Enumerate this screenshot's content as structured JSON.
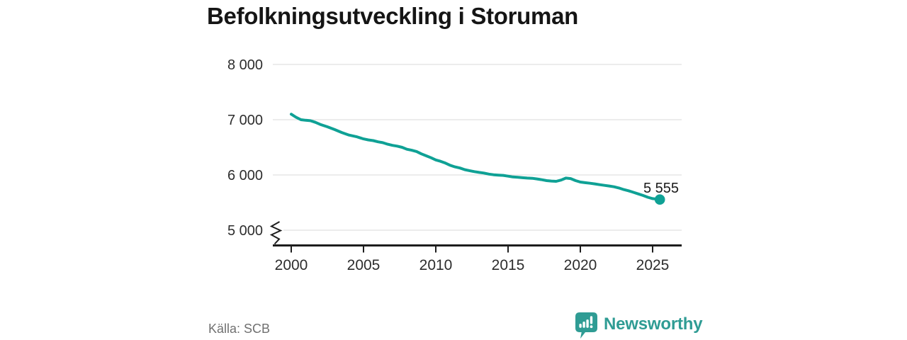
{
  "title": "Befolkningsutveckling i Storuman",
  "source": "Källa: SCB",
  "branding": {
    "name": "Newsworthy",
    "icon": "bar-chart-speech-bubble-icon"
  },
  "colors": {
    "line": "#0fa195",
    "end_point": "#0fa195",
    "brand": "#2f9c94",
    "grid": "#dadada",
    "axis": "#1d1d1d",
    "tick_label": "#2d2d2d",
    "title": "#151515",
    "source_text": "#707070",
    "end_label": "#1a1a1a"
  },
  "chart_data": {
    "type": "line",
    "title": "Befolkningsutveckling i Storuman",
    "xlabel": "",
    "ylabel": "",
    "legend_position": "none",
    "grid": true,
    "axis_break_at_bottom": true,
    "x_range": [
      2000,
      2025.5
    ],
    "ylim": [
      5000,
      8000
    ],
    "y_ticks": [
      {
        "label": "8 000",
        "value": 8000
      },
      {
        "label": "7 000",
        "value": 7000
      },
      {
        "label": "6 000",
        "value": 6000
      },
      {
        "label": "5 000",
        "value": 5000
      }
    ],
    "x_ticks": [
      {
        "label": "2000",
        "value": 2000
      },
      {
        "label": "2005",
        "value": 2005
      },
      {
        "label": "2010",
        "value": 2010
      },
      {
        "label": "2015",
        "value": 2015
      },
      {
        "label": "2020",
        "value": 2020
      },
      {
        "label": "2025",
        "value": 2025
      }
    ],
    "end_label": "5 555",
    "end_value": 5555,
    "series": [
      {
        "name": "Befolkning",
        "points": [
          [
            2000,
            7100
          ],
          [
            2000.33,
            7045
          ],
          [
            2000.67,
            7000
          ],
          [
            2001,
            6990
          ],
          [
            2001.33,
            6982
          ],
          [
            2001.67,
            6952
          ],
          [
            2002,
            6915
          ],
          [
            2002.5,
            6872
          ],
          [
            2003,
            6822
          ],
          [
            2003.5,
            6768
          ],
          [
            2004,
            6722
          ],
          [
            2004.5,
            6694
          ],
          [
            2005,
            6652
          ],
          [
            2005.33,
            6634
          ],
          [
            2005.67,
            6622
          ],
          [
            2006,
            6600
          ],
          [
            2006.33,
            6584
          ],
          [
            2006.67,
            6556
          ],
          [
            2007,
            6536
          ],
          [
            2007.33,
            6522
          ],
          [
            2007.67,
            6500
          ],
          [
            2008,
            6466
          ],
          [
            2008.33,
            6448
          ],
          [
            2008.67,
            6424
          ],
          [
            2009,
            6382
          ],
          [
            2009.33,
            6348
          ],
          [
            2009.67,
            6312
          ],
          [
            2010,
            6272
          ],
          [
            2010.33,
            6248
          ],
          [
            2010.67,
            6214
          ],
          [
            2011,
            6174
          ],
          [
            2011.33,
            6146
          ],
          [
            2011.67,
            6126
          ],
          [
            2012,
            6096
          ],
          [
            2012.33,
            6078
          ],
          [
            2012.67,
            6060
          ],
          [
            2013,
            6046
          ],
          [
            2013.33,
            6034
          ],
          [
            2013.67,
            6016
          ],
          [
            2014,
            6004
          ],
          [
            2014.33,
            5998
          ],
          [
            2014.67,
            5992
          ],
          [
            2015,
            5978
          ],
          [
            2015.33,
            5964
          ],
          [
            2015.67,
            5958
          ],
          [
            2016,
            5950
          ],
          [
            2016.33,
            5944
          ],
          [
            2016.67,
            5940
          ],
          [
            2017,
            5928
          ],
          [
            2017.33,
            5914
          ],
          [
            2017.67,
            5898
          ],
          [
            2018,
            5890
          ],
          [
            2018.33,
            5884
          ],
          [
            2018.67,
            5908
          ],
          [
            2019,
            5944
          ],
          [
            2019.33,
            5934
          ],
          [
            2019.67,
            5898
          ],
          [
            2020,
            5872
          ],
          [
            2020.33,
            5860
          ],
          [
            2020.67,
            5850
          ],
          [
            2021,
            5838
          ],
          [
            2021.33,
            5824
          ],
          [
            2021.67,
            5812
          ],
          [
            2022,
            5800
          ],
          [
            2022.33,
            5786
          ],
          [
            2022.67,
            5764
          ],
          [
            2023,
            5736
          ],
          [
            2023.33,
            5714
          ],
          [
            2023.67,
            5686
          ],
          [
            2024,
            5658
          ],
          [
            2024.33,
            5630
          ],
          [
            2024.67,
            5596
          ],
          [
            2025,
            5572
          ],
          [
            2025.5,
            5555
          ]
        ]
      }
    ]
  }
}
